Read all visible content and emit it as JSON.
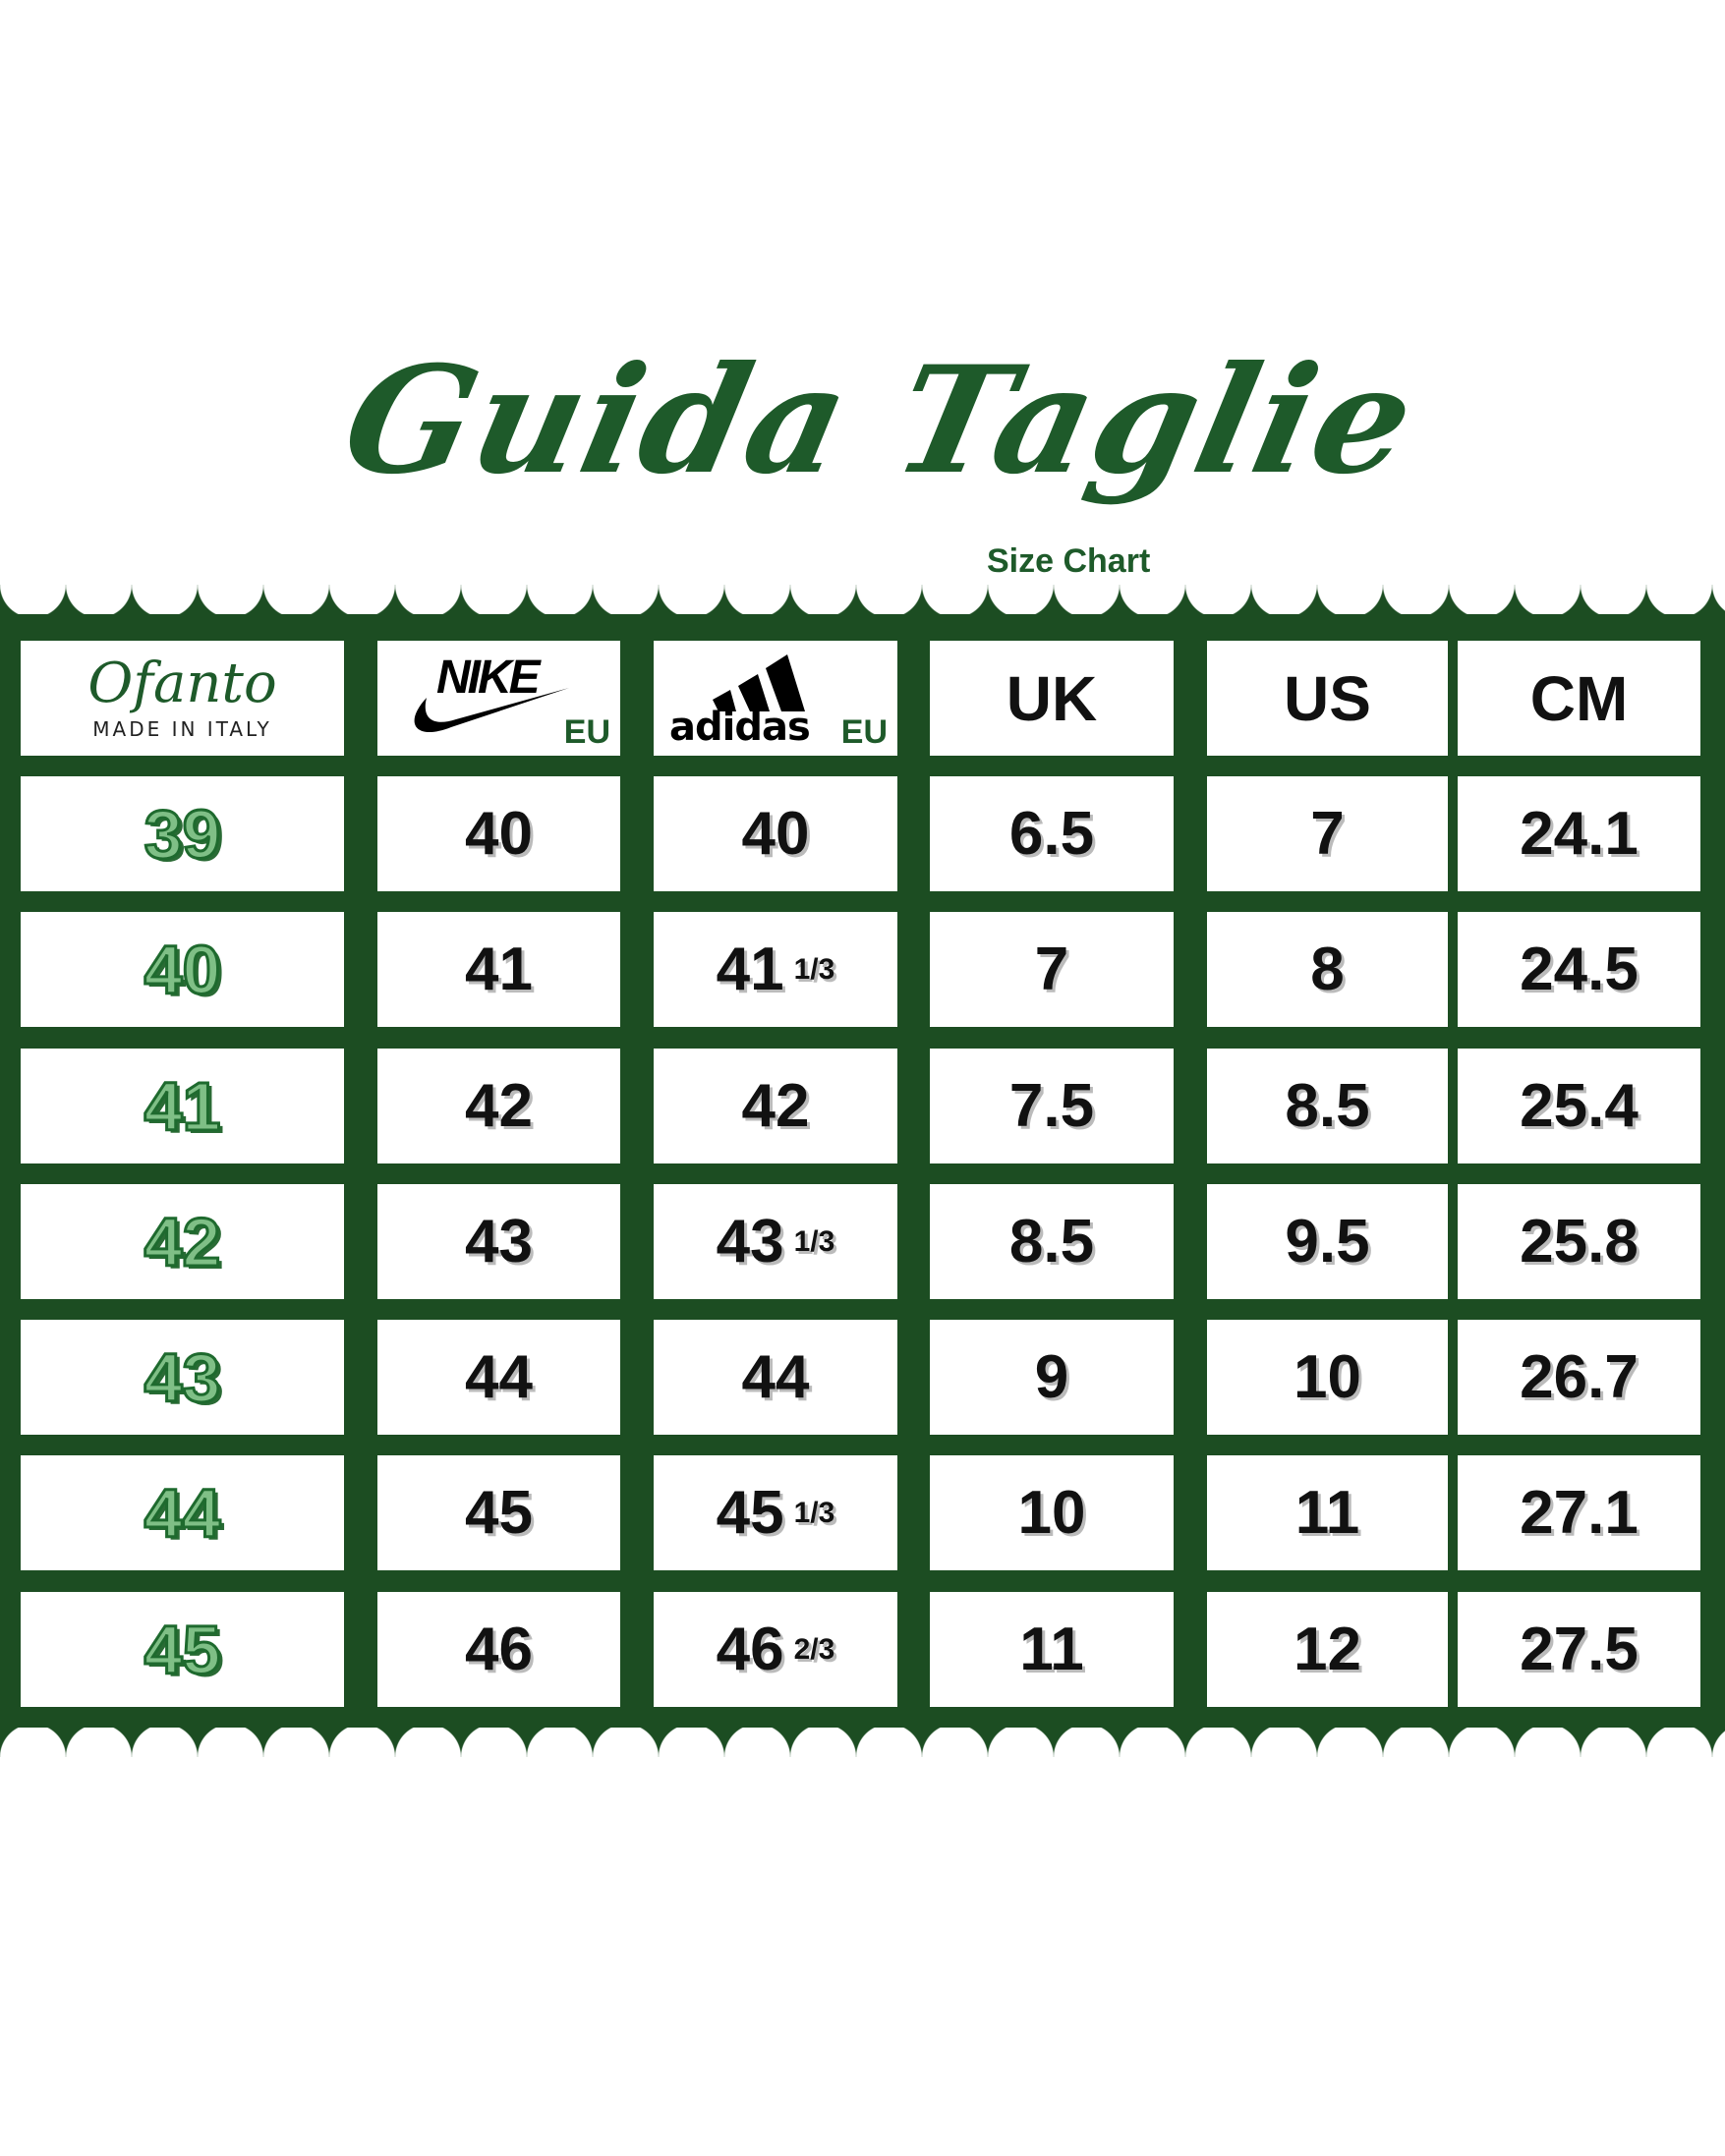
{
  "title": "Guida Taglie",
  "subtitle": "Size Chart",
  "colors": {
    "brand_green": "#1c4d22",
    "highlight_green": "#7fbf86"
  },
  "header": {
    "ofanto": {
      "logo_text": "Ofanto",
      "tagline": "MADE IN ITALY"
    },
    "nike": {
      "logo_text": "NIKE",
      "unit": "EU"
    },
    "adidas": {
      "logo_text": "adidas",
      "unit": "EU"
    },
    "uk": "UK",
    "us": "US",
    "cm": "CM"
  },
  "rows": [
    {
      "ofanto": "39",
      "nike": "40",
      "adidas": "40",
      "adidas_frac": "",
      "uk": "6.5",
      "us": "7",
      "cm": "24.1"
    },
    {
      "ofanto": "40",
      "nike": "41",
      "adidas": "41",
      "adidas_frac": "1/3",
      "uk": "7",
      "us": "8",
      "cm": "24.5"
    },
    {
      "ofanto": "41",
      "nike": "42",
      "adidas": "42",
      "adidas_frac": "",
      "uk": "7.5",
      "us": "8.5",
      "cm": "25.4"
    },
    {
      "ofanto": "42",
      "nike": "43",
      "adidas": "43",
      "adidas_frac": "1/3",
      "uk": "8.5",
      "us": "9.5",
      "cm": "25.8"
    },
    {
      "ofanto": "43",
      "nike": "44",
      "adidas": "44",
      "adidas_frac": "",
      "uk": "9",
      "us": "10",
      "cm": "26.7"
    },
    {
      "ofanto": "44",
      "nike": "45",
      "adidas": "45",
      "adidas_frac": "1/3",
      "uk": "10",
      "us": "11",
      "cm": "27.1"
    },
    {
      "ofanto": "45",
      "nike": "46",
      "adidas": "46",
      "adidas_frac": "2/3",
      "uk": "11",
      "us": "12",
      "cm": "27.5"
    }
  ]
}
